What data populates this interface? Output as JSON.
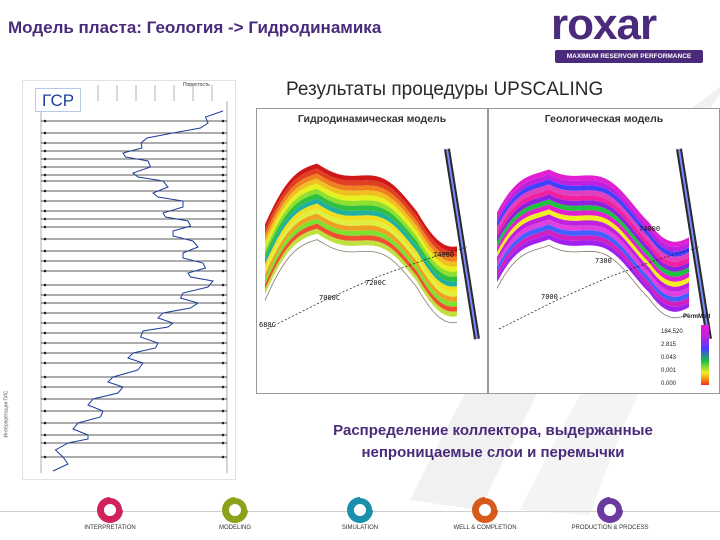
{
  "header": {
    "title": "Модель пласта: Геология -> Гидродинамика"
  },
  "logo": {
    "word": "roxar",
    "tagline": "MAXIMUM RESERVOIR PERFORMANCE",
    "color": "#4a2a7a"
  },
  "log_panel": {
    "badge": "ГСР",
    "header_label": "Пористость",
    "vertical_label": "Интерпретация ГИС"
  },
  "upscaling": {
    "title": "Результаты процедуры UPSCALING",
    "hydro_label": "Гидродинамическая модель",
    "geo_label": "Геологическая модель",
    "hydro_depths": [
      "74000",
      "7200С",
      "7000С",
      "680С"
    ],
    "geo_depths": [
      "74000",
      "7300",
      "7000"
    ],
    "legend": {
      "title": "PermMod",
      "values": [
        "184.520",
        "2.815",
        "0.043",
        "0.001",
        "0.000"
      ]
    }
  },
  "caption": {
    "text": "Распределение коллектора, выдержанные непроницаемые слои и перемычки"
  },
  "footer": {
    "items": [
      {
        "label": "INTERPRETATION",
        "color": "#d1235a"
      },
      {
        "label": "MODELING",
        "color": "#8aa31a"
      },
      {
        "label": "SIMULATION",
        "color": "#1a8fae"
      },
      {
        "label": "WELL & COMPLETION",
        "color": "#d65a1c"
      },
      {
        "label": "PRODUCTION & PROCESS",
        "color": "#6b3a9e"
      }
    ]
  }
}
